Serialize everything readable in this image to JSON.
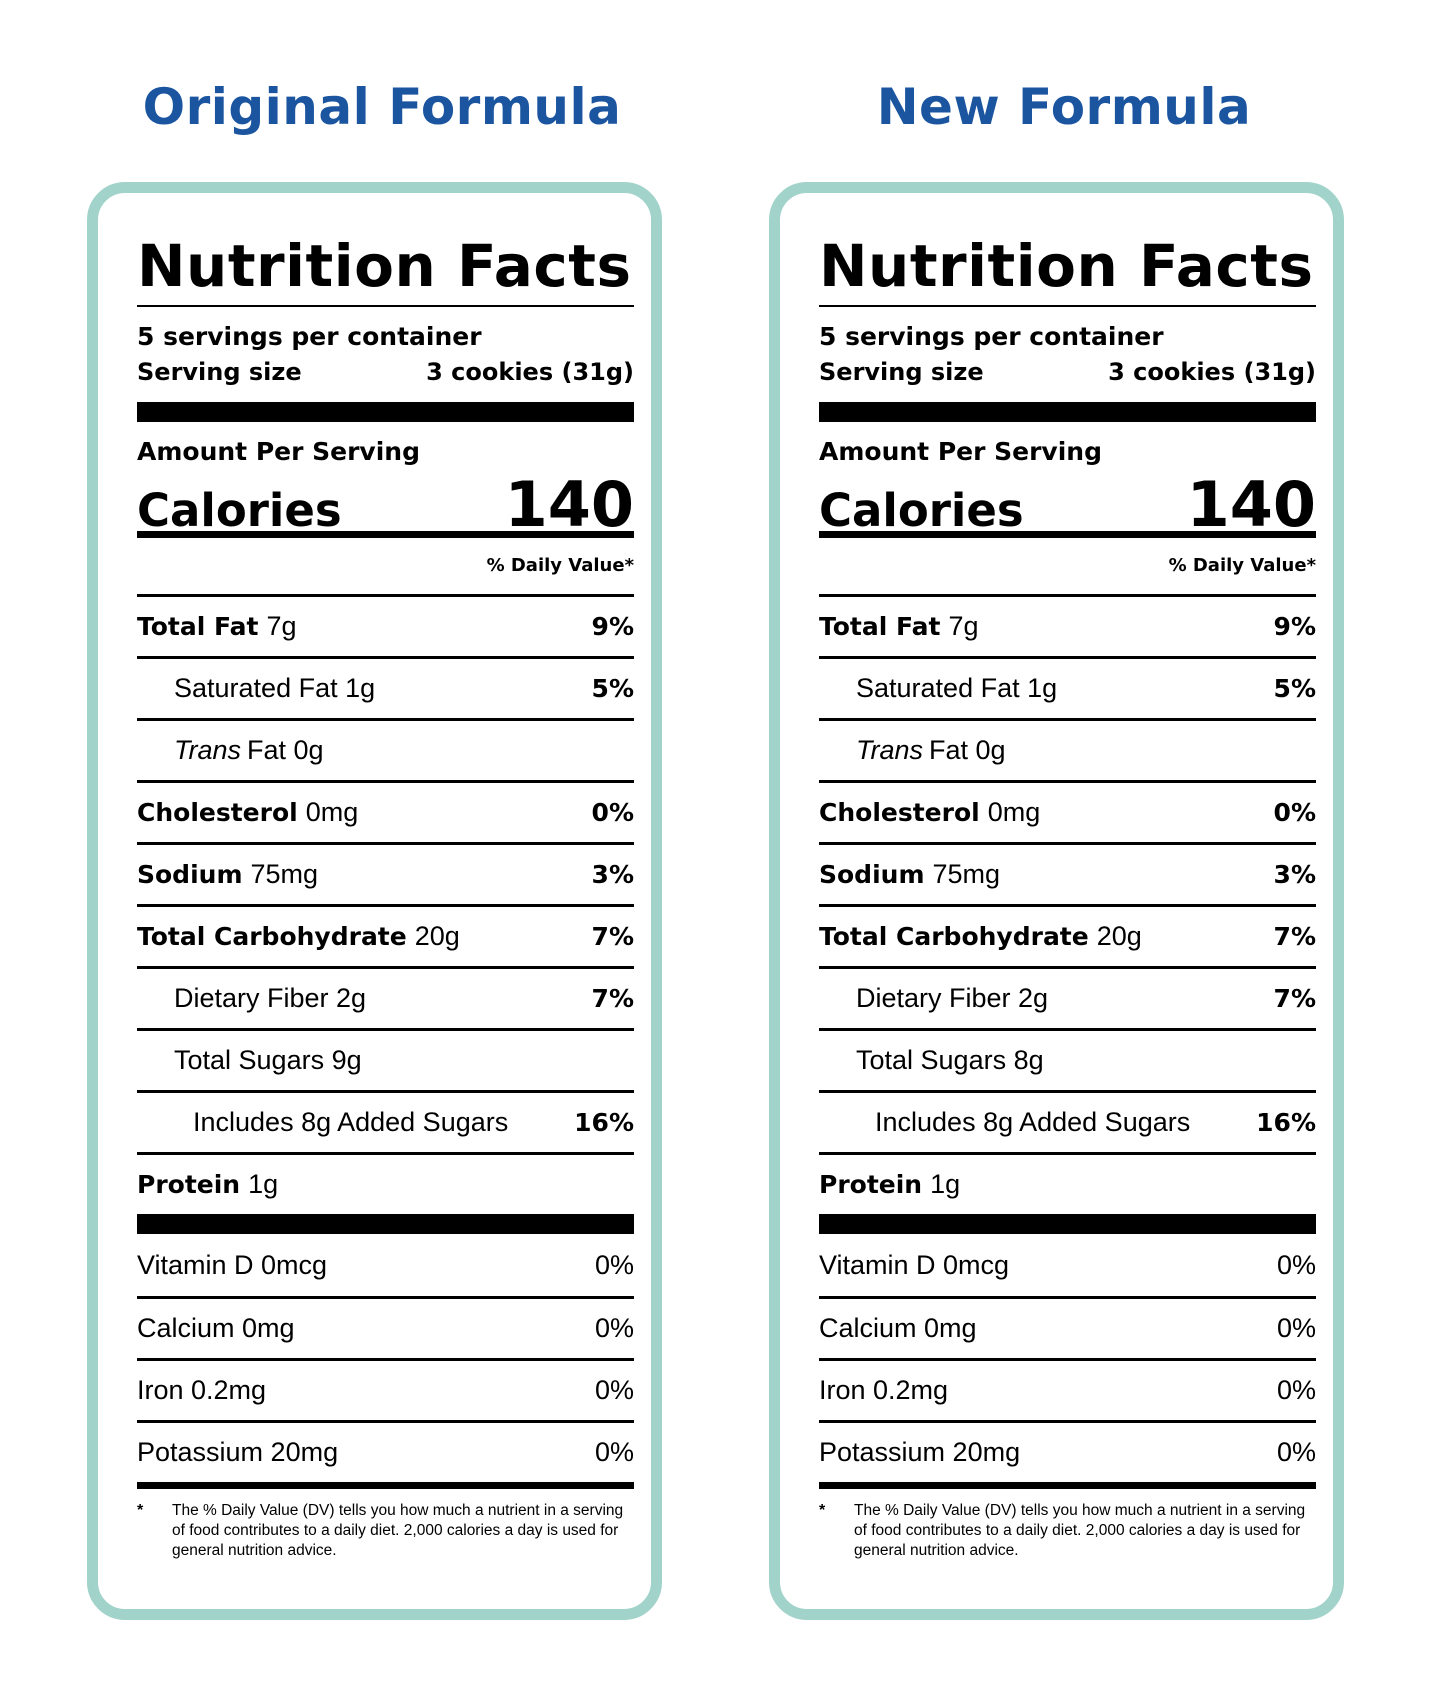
{
  "colors": {
    "heading": "#1b55a0",
    "panel_border": "#a2d3ca"
  },
  "panels": [
    {
      "heading": "Original Formula",
      "title": "Nutrition Facts",
      "servings_per_container": "5 servings per container",
      "serving_size_label": "Serving size",
      "serving_size_value": "3 cookies (31g)",
      "amount_per_serving": "Amount Per Serving",
      "calories_label": "Calories",
      "calories_value": "140",
      "dv_header": "% Daily Value*",
      "total_fat": {
        "name": "Total Fat",
        "amount": "7g",
        "dv": "9%"
      },
      "saturated_fat": {
        "name": "Saturated Fat 1g",
        "dv": "5%"
      },
      "trans_fat": {
        "italic": "Trans",
        "rest": "Fat 0g"
      },
      "cholesterol": {
        "name": "Cholesterol",
        "amount": "0mg",
        "dv": "0%"
      },
      "sodium": {
        "name": "Sodium",
        "amount": "75mg",
        "dv": "3%"
      },
      "total_carb": {
        "name": "Total Carbohydrate",
        "amount": "20g",
        "dv": "7%"
      },
      "dietary_fiber": {
        "name": "Dietary Fiber 2g",
        "dv": "7%"
      },
      "total_sugars": {
        "name": "Total Sugars 9g"
      },
      "added_sugars": {
        "name": "Includes 8g Added Sugars",
        "dv": "16%"
      },
      "protein": {
        "name": "Protein",
        "amount": "1g"
      },
      "vitamins": [
        {
          "name": "Vitamin D 0mcg",
          "dv": "0%"
        },
        {
          "name": "Calcium 0mg",
          "dv": "0%"
        },
        {
          "name": "Iron 0.2mg",
          "dv": "0%"
        },
        {
          "name": "Potassium 20mg",
          "dv": "0%"
        }
      ],
      "footnote_star": "*",
      "footnote": "The % Daily Value (DV) tells you how much a nutrient in a serving of food contributes to a daily diet. 2,000 calories a day is used for general nutrition advice."
    },
    {
      "heading": "New Formula",
      "title": "Nutrition Facts",
      "servings_per_container": "5 servings per container",
      "serving_size_label": "Serving size",
      "serving_size_value": "3 cookies (31g)",
      "amount_per_serving": "Amount Per Serving",
      "calories_label": "Calories",
      "calories_value": "140",
      "dv_header": "% Daily Value*",
      "total_fat": {
        "name": "Total Fat",
        "amount": "7g",
        "dv": "9%"
      },
      "saturated_fat": {
        "name": "Saturated Fat 1g",
        "dv": "5%"
      },
      "trans_fat": {
        "italic": "Trans",
        "rest": "Fat 0g"
      },
      "cholesterol": {
        "name": "Cholesterol",
        "amount": "0mg",
        "dv": "0%"
      },
      "sodium": {
        "name": "Sodium",
        "amount": "75mg",
        "dv": "3%"
      },
      "total_carb": {
        "name": "Total Carbohydrate",
        "amount": "20g",
        "dv": "7%"
      },
      "dietary_fiber": {
        "name": "Dietary Fiber 2g",
        "dv": "7%"
      },
      "total_sugars": {
        "name": "Total Sugars 8g"
      },
      "added_sugars": {
        "name": "Includes 8g Added Sugars",
        "dv": "16%"
      },
      "protein": {
        "name": "Protein",
        "amount": "1g"
      },
      "vitamins": [
        {
          "name": "Vitamin D 0mcg",
          "dv": "0%"
        },
        {
          "name": "Calcium 0mg",
          "dv": "0%"
        },
        {
          "name": "Iron 0.2mg",
          "dv": "0%"
        },
        {
          "name": "Potassium 20mg",
          "dv": "0%"
        }
      ],
      "footnote_star": "*",
      "footnote": "The % Daily Value (DV) tells you how much a nutrient in a serving of food contributes to a daily diet. 2,000 calories a day is used for general nutrition advice."
    }
  ]
}
